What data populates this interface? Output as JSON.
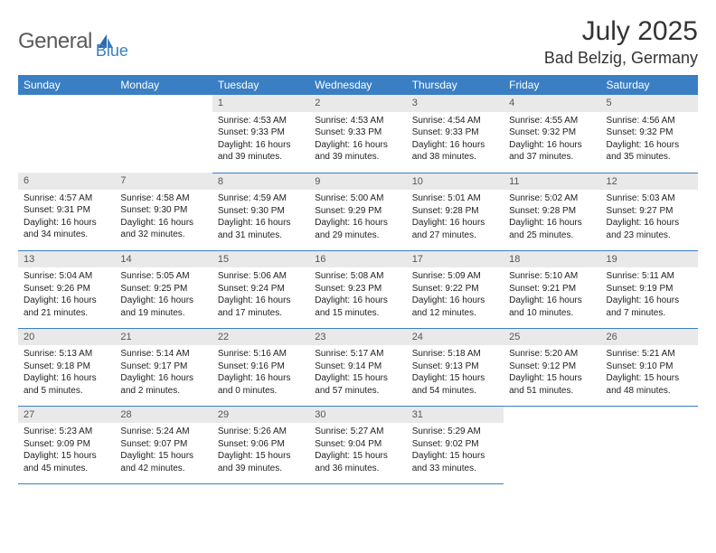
{
  "brand": {
    "name_part1": "General",
    "name_part2": "Blue"
  },
  "title": "July 2025",
  "location": "Bad Belzig, Germany",
  "colors": {
    "accent": "#3a7fc4",
    "header_text": "#ffffff",
    "daynum_bg": "#e9e9e9",
    "text": "#222222"
  },
  "weekdays": [
    "Sunday",
    "Monday",
    "Tuesday",
    "Wednesday",
    "Thursday",
    "Friday",
    "Saturday"
  ],
  "weeks": [
    [
      null,
      null,
      {
        "n": "1",
        "sunrise": "4:53 AM",
        "sunset": "9:33 PM",
        "daylight": "16 hours and 39 minutes."
      },
      {
        "n": "2",
        "sunrise": "4:53 AM",
        "sunset": "9:33 PM",
        "daylight": "16 hours and 39 minutes."
      },
      {
        "n": "3",
        "sunrise": "4:54 AM",
        "sunset": "9:33 PM",
        "daylight": "16 hours and 38 minutes."
      },
      {
        "n": "4",
        "sunrise": "4:55 AM",
        "sunset": "9:32 PM",
        "daylight": "16 hours and 37 minutes."
      },
      {
        "n": "5",
        "sunrise": "4:56 AM",
        "sunset": "9:32 PM",
        "daylight": "16 hours and 35 minutes."
      }
    ],
    [
      {
        "n": "6",
        "sunrise": "4:57 AM",
        "sunset": "9:31 PM",
        "daylight": "16 hours and 34 minutes."
      },
      {
        "n": "7",
        "sunrise": "4:58 AM",
        "sunset": "9:30 PM",
        "daylight": "16 hours and 32 minutes."
      },
      {
        "n": "8",
        "sunrise": "4:59 AM",
        "sunset": "9:30 PM",
        "daylight": "16 hours and 31 minutes."
      },
      {
        "n": "9",
        "sunrise": "5:00 AM",
        "sunset": "9:29 PM",
        "daylight": "16 hours and 29 minutes."
      },
      {
        "n": "10",
        "sunrise": "5:01 AM",
        "sunset": "9:28 PM",
        "daylight": "16 hours and 27 minutes."
      },
      {
        "n": "11",
        "sunrise": "5:02 AM",
        "sunset": "9:28 PM",
        "daylight": "16 hours and 25 minutes."
      },
      {
        "n": "12",
        "sunrise": "5:03 AM",
        "sunset": "9:27 PM",
        "daylight": "16 hours and 23 minutes."
      }
    ],
    [
      {
        "n": "13",
        "sunrise": "5:04 AM",
        "sunset": "9:26 PM",
        "daylight": "16 hours and 21 minutes."
      },
      {
        "n": "14",
        "sunrise": "5:05 AM",
        "sunset": "9:25 PM",
        "daylight": "16 hours and 19 minutes."
      },
      {
        "n": "15",
        "sunrise": "5:06 AM",
        "sunset": "9:24 PM",
        "daylight": "16 hours and 17 minutes."
      },
      {
        "n": "16",
        "sunrise": "5:08 AM",
        "sunset": "9:23 PM",
        "daylight": "16 hours and 15 minutes."
      },
      {
        "n": "17",
        "sunrise": "5:09 AM",
        "sunset": "9:22 PM",
        "daylight": "16 hours and 12 minutes."
      },
      {
        "n": "18",
        "sunrise": "5:10 AM",
        "sunset": "9:21 PM",
        "daylight": "16 hours and 10 minutes."
      },
      {
        "n": "19",
        "sunrise": "5:11 AM",
        "sunset": "9:19 PM",
        "daylight": "16 hours and 7 minutes."
      }
    ],
    [
      {
        "n": "20",
        "sunrise": "5:13 AM",
        "sunset": "9:18 PM",
        "daylight": "16 hours and 5 minutes."
      },
      {
        "n": "21",
        "sunrise": "5:14 AM",
        "sunset": "9:17 PM",
        "daylight": "16 hours and 2 minutes."
      },
      {
        "n": "22",
        "sunrise": "5:16 AM",
        "sunset": "9:16 PM",
        "daylight": "16 hours and 0 minutes."
      },
      {
        "n": "23",
        "sunrise": "5:17 AM",
        "sunset": "9:14 PM",
        "daylight": "15 hours and 57 minutes."
      },
      {
        "n": "24",
        "sunrise": "5:18 AM",
        "sunset": "9:13 PM",
        "daylight": "15 hours and 54 minutes."
      },
      {
        "n": "25",
        "sunrise": "5:20 AM",
        "sunset": "9:12 PM",
        "daylight": "15 hours and 51 minutes."
      },
      {
        "n": "26",
        "sunrise": "5:21 AM",
        "sunset": "9:10 PM",
        "daylight": "15 hours and 48 minutes."
      }
    ],
    [
      {
        "n": "27",
        "sunrise": "5:23 AM",
        "sunset": "9:09 PM",
        "daylight": "15 hours and 45 minutes."
      },
      {
        "n": "28",
        "sunrise": "5:24 AM",
        "sunset": "9:07 PM",
        "daylight": "15 hours and 42 minutes."
      },
      {
        "n": "29",
        "sunrise": "5:26 AM",
        "sunset": "9:06 PM",
        "daylight": "15 hours and 39 minutes."
      },
      {
        "n": "30",
        "sunrise": "5:27 AM",
        "sunset": "9:04 PM",
        "daylight": "15 hours and 36 minutes."
      },
      {
        "n": "31",
        "sunrise": "5:29 AM",
        "sunset": "9:02 PM",
        "daylight": "15 hours and 33 minutes."
      },
      null,
      null
    ]
  ],
  "labels": {
    "sunrise": "Sunrise:",
    "sunset": "Sunset:",
    "daylight": "Daylight:"
  }
}
